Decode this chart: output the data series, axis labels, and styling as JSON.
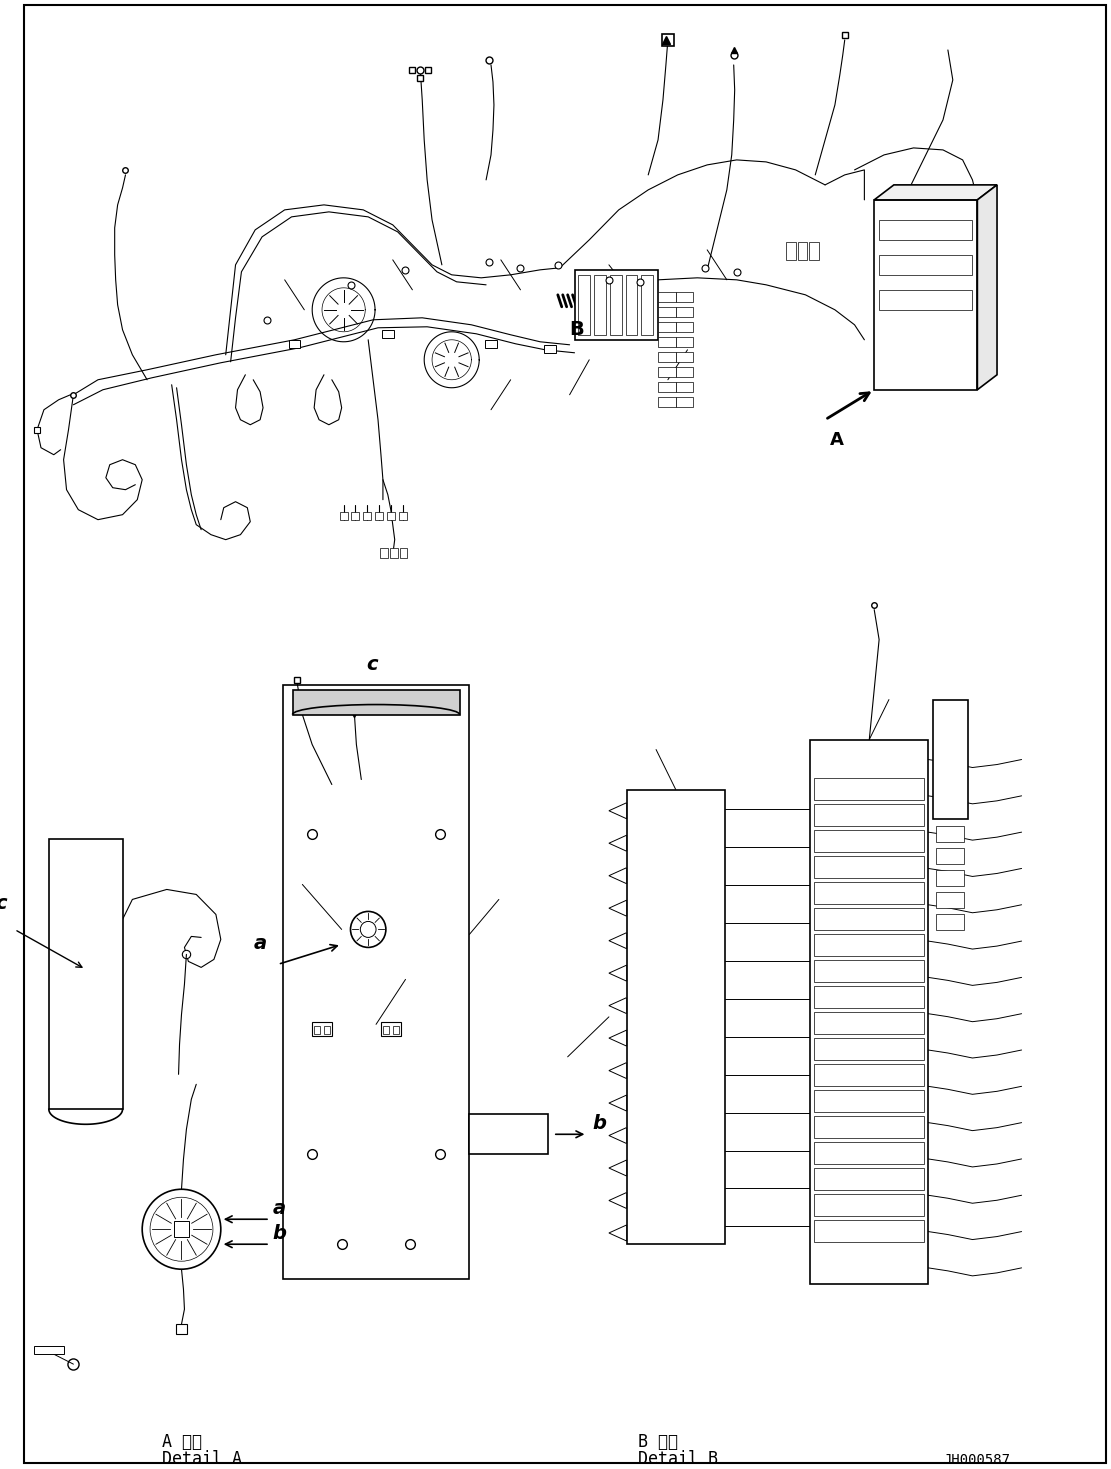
{
  "bg_color": "#ffffff",
  "line_color": "#000000",
  "fig_width": 11.11,
  "fig_height": 14.69,
  "dpi": 100,
  "label_detail_a_jp": "A 詳細",
  "label_detail_a_en": "Detail A",
  "label_detail_b_jp": "B 詳細",
  "label_detail_b_en": "Detail B",
  "doc_number": "JH000587",
  "label_A": "A",
  "label_B": "B",
  "label_a1": "a",
  "label_b1": "b",
  "label_c1": "c",
  "label_a2": "a",
  "label_b2": "b",
  "label_c2": "c"
}
